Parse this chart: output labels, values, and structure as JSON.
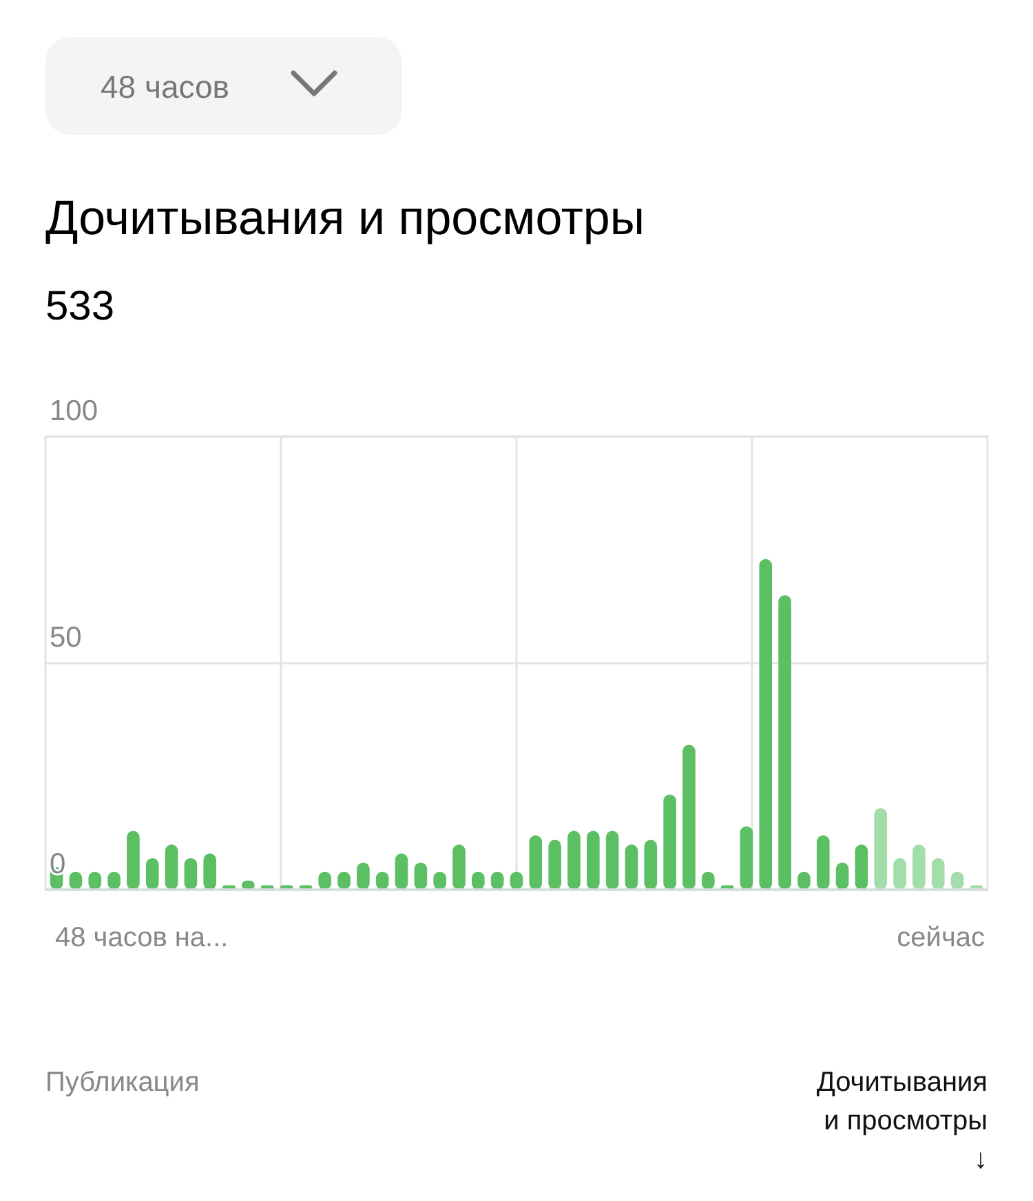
{
  "chart_data": {
    "type": "bar",
    "title": "Дочитывания и просмотры",
    "subtitle": "533",
    "categories": [
      null,
      null,
      null,
      null,
      null,
      null,
      null,
      null,
      null,
      null,
      null,
      null,
      null,
      null,
      null,
      null,
      null,
      null,
      null,
      null,
      null,
      null,
      null,
      null,
      null,
      null,
      null,
      null,
      null,
      null,
      null,
      null,
      null,
      null,
      null,
      null,
      null,
      null,
      null,
      null,
      null,
      null,
      null,
      null,
      null,
      null,
      null,
      null,
      null
    ],
    "values": [
      5,
      4,
      4,
      4,
      13,
      7,
      10,
      7,
      8,
      1,
      2,
      1,
      1,
      1,
      4,
      4,
      6,
      4,
      8,
      6,
      4,
      10,
      4,
      4,
      4,
      12,
      11,
      13,
      13,
      13,
      10,
      11,
      21,
      32,
      4,
      1,
      14,
      73,
      65,
      4,
      12,
      6,
      10,
      18,
      7,
      10,
      7,
      4,
      1
    ],
    "colors": [
      "#5cbf63",
      "#5cbf63",
      "#5cbf63",
      "#5cbf63",
      "#5cbf63",
      "#5cbf63",
      "#5cbf63",
      "#5cbf63",
      "#5cbf63",
      "#5cbf63",
      "#5cbf63",
      "#5cbf63",
      "#5cbf63",
      "#5cbf63",
      "#5cbf63",
      "#5cbf63",
      "#5cbf63",
      "#5cbf63",
      "#5cbf63",
      "#5cbf63",
      "#5cbf63",
      "#5cbf63",
      "#5cbf63",
      "#5cbf63",
      "#5cbf63",
      "#5cbf63",
      "#5cbf63",
      "#5cbf63",
      "#5cbf63",
      "#5cbf63",
      "#5cbf63",
      "#5cbf63",
      "#5cbf63",
      "#5cbf63",
      "#5cbf63",
      "#5cbf63",
      "#5cbf63",
      "#5cbf63",
      "#5cbf63",
      "#5cbf63",
      "#5cbf63",
      "#5cbf63",
      "#5cbf63",
      "#a3ddaa",
      "#a3ddaa",
      "#a3ddaa",
      "#a3ddaa",
      "#a3ddaa",
      "#a3ddaa"
    ],
    "ylim": [
      0,
      100
    ],
    "yticks": [
      0,
      50,
      100
    ],
    "grid": true,
    "annotations": [
      "48 часов",
      "48 часов на...",
      "сейчас",
      "Публикация",
      "Дочитывания и просмотры ↓"
    ]
  }
}
